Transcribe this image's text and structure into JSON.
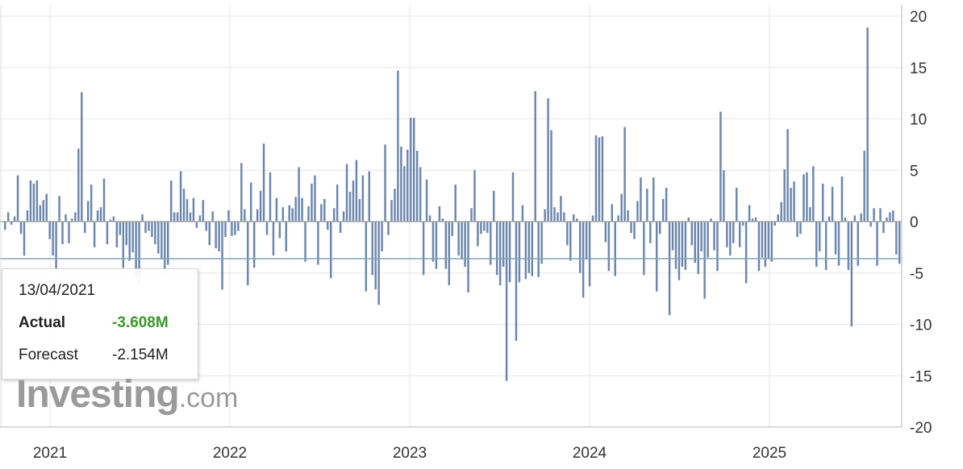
{
  "chart_data": {
    "type": "bar",
    "title": "",
    "xlabel": "",
    "ylabel": "",
    "x_start_year": 2021,
    "x_end_year": 2025,
    "year_labels": [
      "2021",
      "2022",
      "2023",
      "2024",
      "2025"
    ],
    "y_ticks": [
      "20",
      "15",
      "10",
      "5",
      "0",
      "-5",
      "-10",
      "-15",
      "-20"
    ],
    "ylim": [
      -20,
      20
    ],
    "grid": true,
    "highlight_value": -3.608,
    "bar_color": "#6b86ad",
    "highlight_line_color": "#7ba7bf",
    "values": [
      -0.8,
      0.9,
      -0.3,
      0.5,
      4.5,
      -1.2,
      -3.3,
      1.1,
      4.0,
      3.7,
      4.0,
      1.6,
      2.1,
      2.7,
      -1.7,
      -3.3,
      -4.6,
      2.5,
      -2.2,
      0.7,
      -2.1,
      0.3,
      0.9,
      7.1,
      12.6,
      -1.1,
      2.0,
      3.6,
      -2.5,
      1.1,
      1.4,
      4.2,
      -2.2,
      0.2,
      0.5,
      -2.5,
      -1.3,
      -4.5,
      -2.3,
      -3.8,
      -3.0,
      -5.5,
      -6.0,
      0.7,
      -1.1,
      -0.9,
      -1.5,
      -2.2,
      -3.1,
      -3.7,
      -5.0,
      -4.2,
      4.0,
      0.9,
      0.9,
      4.9,
      3.2,
      2.2,
      0.9,
      2.3,
      -0.6,
      0.6,
      2.1,
      -0.9,
      -2.3,
      1.0,
      -2.6,
      -2.9,
      -6.6,
      -1.5,
      1.1,
      -1.4,
      -1.3,
      -0.9,
      5.7,
      1.2,
      -6.2,
      3.8,
      -4.5,
      1.2,
      3.0,
      7.6,
      -1.3,
      4.8,
      -3.3,
      2.3,
      -1.6,
      1.4,
      -2.9,
      1.6,
      1.3,
      2.4,
      5.3,
      2.3,
      -3.9,
      1.5,
      3.7,
      4.5,
      -4.2,
      1.7,
      2.2,
      -0.8,
      -5.5,
      1.3,
      3.6,
      -1.1,
      1.0,
      5.6,
      2.9,
      4.0,
      6.0,
      2.2,
      4.5,
      -6.8,
      4.9,
      -5.2,
      -6.6,
      -8.1,
      -2.9,
      7.5,
      -1.3,
      2.1,
      3.2,
      14.7,
      7.3,
      5.4,
      7.0,
      10.1,
      10.1,
      6.9,
      5.3,
      -5.2,
      4.1,
      0.6,
      -3.9,
      -4.6,
      1.5,
      0.3,
      -4.6,
      -6.2,
      -1.4,
      3.6,
      -3.3,
      -3.7,
      -4.4,
      -6.9,
      1.3,
      5.0,
      -2.4,
      -1.2,
      -0.9,
      -1.1,
      -4.2,
      3.0,
      -5.2,
      -6.2,
      -4.4,
      -15.5,
      -5.9,
      4.8,
      -11.6,
      -5.9,
      1.6,
      -5.6,
      -5.0,
      -5.3,
      12.7,
      -5.4,
      -4.1,
      1.2,
      12.0,
      8.9,
      1.4,
      0.9,
      2.5,
      0.9,
      -2.3,
      -3.8,
      0.7,
      0.3,
      -5.0,
      -7.4,
      -3.7,
      -6.3,
      0.6,
      8.4,
      8.2,
      8.3,
      -2.0,
      -4.8,
      1.7,
      -5.3,
      0.6,
      2.7,
      9.2,
      1.1,
      -1.1,
      -1.7,
      2.0,
      4.3,
      -5.2,
      3.2,
      -2.1,
      4.3,
      -6.8,
      -1.2,
      2.2,
      3.3,
      -9.1,
      -2.8,
      -4.6,
      -5.7,
      -4.4,
      -4.7,
      0.4,
      -2.3,
      -4.0,
      -5.1,
      -2.9,
      -7.5,
      -3.5,
      0.3,
      -2.8,
      -4.8,
      10.7,
      5.0,
      -2.5,
      -3.3,
      -2.1,
      3.3,
      -2.5,
      -0.4,
      -6.0,
      1.6,
      0.3,
      0.4,
      -4.8,
      -3.5,
      -4.4,
      -3.6,
      -3.9,
      -0.4,
      0.7,
      1.9,
      5.1,
      9.0,
      3.3,
      3.9,
      -1.5,
      -1.2,
      4.6,
      4.8,
      1.4,
      5.4,
      -4.4,
      -2.9,
      3.7,
      -4.7,
      0.5,
      3.4,
      -3.2,
      -4.3,
      4.4,
      0.4,
      -4.7,
      -10.2,
      0.6,
      -4.3,
      0.8,
      6.9,
      18.9,
      -0.5,
      1.3,
      -4.3,
      1.3,
      -1.1,
      0.4,
      0.9,
      1.1,
      -3.2,
      -4.1
    ]
  },
  "tooltip": {
    "date": "13/04/2021",
    "actual_label": "Actual",
    "actual_value": "-3.608M",
    "forecast_label": "Forecast",
    "forecast_value": "-2.154M",
    "actual_color": "#3a9a2a"
  },
  "logo": {
    "main": "Investing",
    "suffix": ".com"
  }
}
